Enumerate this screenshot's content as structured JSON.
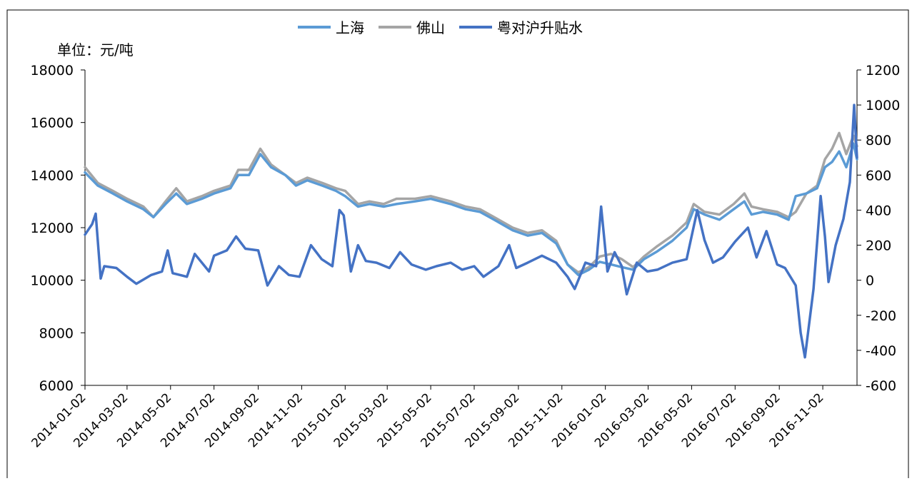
{
  "chart_data": {
    "type": "line",
    "unit_label": "单位：元/吨",
    "legend": [
      "上海",
      "佛山",
      "粤对沪升贴水"
    ],
    "x_ticks": [
      "2014-01-02",
      "2014-03-02",
      "2014-05-02",
      "2014-07-02",
      "2014-09-02",
      "2014-11-02",
      "2015-01-02",
      "2015-03-02",
      "2015-05-02",
      "2015-07-02",
      "2015-09-02",
      "2015-11-02",
      "2016-01-02",
      "2016-03-02",
      "2016-05-02",
      "2016-07-02",
      "2016-09-02",
      "2016-11-02"
    ],
    "x_range": [
      "2014-01-02",
      "2016-12-20"
    ],
    "y_left": {
      "min": 6000,
      "max": 18000,
      "ticks": [
        "6000",
        "8000",
        "10000",
        "12000",
        "14000",
        "16000",
        "18000"
      ]
    },
    "y_right": {
      "min": -600,
      "max": 1200,
      "ticks": [
        "-600",
        "-400",
        "-200",
        "0",
        "200",
        "400",
        "600",
        "800",
        "1000",
        "1200"
      ]
    },
    "grid": false,
    "legend_position": "top-center",
    "colors": {
      "shanghai": "#5b9bd5",
      "foshan": "#a5a5a5",
      "spread": "#4472c4"
    },
    "series": [
      {
        "name": "上海",
        "axis": "left",
        "points": [
          [
            "2014-01-02",
            14100
          ],
          [
            "2014-01-20",
            13600
          ],
          [
            "2014-02-10",
            13300
          ],
          [
            "2014-03-02",
            13000
          ],
          [
            "2014-03-25",
            12700
          ],
          [
            "2014-04-08",
            12400
          ],
          [
            "2014-04-25",
            12900
          ],
          [
            "2014-05-10",
            13300
          ],
          [
            "2014-05-25",
            12900
          ],
          [
            "2014-06-15",
            13100
          ],
          [
            "2014-07-02",
            13300
          ],
          [
            "2014-07-25",
            13500
          ],
          [
            "2014-08-05",
            14000
          ],
          [
            "2014-08-20",
            14000
          ],
          [
            "2014-09-05",
            14800
          ],
          [
            "2014-09-20",
            14300
          ],
          [
            "2014-10-10",
            14000
          ],
          [
            "2014-10-25",
            13600
          ],
          [
            "2014-11-10",
            13800
          ],
          [
            "2014-12-01",
            13600
          ],
          [
            "2014-12-20",
            13400
          ],
          [
            "2015-01-02",
            13200
          ],
          [
            "2015-01-20",
            12800
          ],
          [
            "2015-02-05",
            12900
          ],
          [
            "2015-02-25",
            12800
          ],
          [
            "2015-03-15",
            12900
          ],
          [
            "2015-04-10",
            13000
          ],
          [
            "2015-05-02",
            13100
          ],
          [
            "2015-05-30",
            12900
          ],
          [
            "2015-06-20",
            12700
          ],
          [
            "2015-07-10",
            12600
          ],
          [
            "2015-07-30",
            12300
          ],
          [
            "2015-08-25",
            11900
          ],
          [
            "2015-09-15",
            11700
          ],
          [
            "2015-10-05",
            11800
          ],
          [
            "2015-10-25",
            11400
          ],
          [
            "2015-11-10",
            10600
          ],
          [
            "2015-11-25",
            10200
          ],
          [
            "2015-12-10",
            10400
          ],
          [
            "2015-12-25",
            10700
          ],
          [
            "2016-01-10",
            10600
          ],
          [
            "2016-01-25",
            10500
          ],
          [
            "2016-02-10",
            10400
          ],
          [
            "2016-02-25",
            10800
          ],
          [
            "2016-03-15",
            11100
          ],
          [
            "2016-04-05",
            11500
          ],
          [
            "2016-04-25",
            12000
          ],
          [
            "2016-05-05",
            12700
          ],
          [
            "2016-05-20",
            12500
          ],
          [
            "2016-06-10",
            12300
          ],
          [
            "2016-06-30",
            12700
          ],
          [
            "2016-07-15",
            13000
          ],
          [
            "2016-07-25",
            12500
          ],
          [
            "2016-08-10",
            12600
          ],
          [
            "2016-08-30",
            12500
          ],
          [
            "2016-09-15",
            12300
          ],
          [
            "2016-09-25",
            13200
          ],
          [
            "2016-10-10",
            13300
          ],
          [
            "2016-10-25",
            13500
          ],
          [
            "2016-11-05",
            14300
          ],
          [
            "2016-11-15",
            14500
          ],
          [
            "2016-11-25",
            14900
          ],
          [
            "2016-12-05",
            14300
          ],
          [
            "2016-12-15",
            15200
          ],
          [
            "2016-12-20",
            14600
          ]
        ]
      },
      {
        "name": "佛山",
        "axis": "left",
        "points": [
          [
            "2014-01-02",
            14300
          ],
          [
            "2014-01-20",
            13700
          ],
          [
            "2014-02-10",
            13400
          ],
          [
            "2014-03-02",
            13100
          ],
          [
            "2014-03-25",
            12800
          ],
          [
            "2014-04-08",
            12400
          ],
          [
            "2014-04-25",
            13000
          ],
          [
            "2014-05-10",
            13500
          ],
          [
            "2014-05-25",
            13000
          ],
          [
            "2014-06-15",
            13200
          ],
          [
            "2014-07-02",
            13400
          ],
          [
            "2014-07-25",
            13600
          ],
          [
            "2014-08-05",
            14200
          ],
          [
            "2014-08-20",
            14200
          ],
          [
            "2014-09-05",
            15000
          ],
          [
            "2014-09-20",
            14400
          ],
          [
            "2014-10-10",
            14000
          ],
          [
            "2014-10-25",
            13700
          ],
          [
            "2014-11-10",
            13900
          ],
          [
            "2014-12-01",
            13700
          ],
          [
            "2014-12-20",
            13500
          ],
          [
            "2015-01-02",
            13400
          ],
          [
            "2015-01-20",
            12900
          ],
          [
            "2015-02-05",
            13000
          ],
          [
            "2015-02-25",
            12900
          ],
          [
            "2015-03-15",
            13100
          ],
          [
            "2015-04-10",
            13100
          ],
          [
            "2015-05-02",
            13200
          ],
          [
            "2015-05-30",
            13000
          ],
          [
            "2015-06-20",
            12800
          ],
          [
            "2015-07-10",
            12700
          ],
          [
            "2015-07-30",
            12400
          ],
          [
            "2015-08-25",
            12000
          ],
          [
            "2015-09-15",
            11800
          ],
          [
            "2015-10-05",
            11900
          ],
          [
            "2015-10-25",
            11500
          ],
          [
            "2015-11-10",
            10600
          ],
          [
            "2015-11-25",
            10300
          ],
          [
            "2015-12-10",
            10500
          ],
          [
            "2015-12-25",
            10900
          ],
          [
            "2016-01-10",
            11000
          ],
          [
            "2016-01-25",
            10800
          ],
          [
            "2016-02-10",
            10500
          ],
          [
            "2016-02-25",
            10900
          ],
          [
            "2016-03-15",
            11300
          ],
          [
            "2016-04-05",
            11700
          ],
          [
            "2016-04-25",
            12200
          ],
          [
            "2016-05-05",
            12900
          ],
          [
            "2016-05-20",
            12600
          ],
          [
            "2016-06-10",
            12500
          ],
          [
            "2016-06-30",
            12900
          ],
          [
            "2016-07-15",
            13300
          ],
          [
            "2016-07-25",
            12800
          ],
          [
            "2016-08-10",
            12700
          ],
          [
            "2016-08-30",
            12600
          ],
          [
            "2016-09-15",
            12400
          ],
          [
            "2016-09-25",
            12600
          ],
          [
            "2016-10-10",
            13300
          ],
          [
            "2016-10-25",
            13600
          ],
          [
            "2016-11-05",
            14600
          ],
          [
            "2016-11-15",
            15000
          ],
          [
            "2016-11-25",
            15600
          ],
          [
            "2016-12-05",
            14800
          ],
          [
            "2016-12-15",
            15500
          ],
          [
            "2016-12-20",
            15100
          ]
        ]
      },
      {
        "name": "粤对沪升贴水",
        "axis": "right",
        "points": [
          [
            "2014-01-02",
            260
          ],
          [
            "2014-01-12",
            320
          ],
          [
            "2014-01-17",
            380
          ],
          [
            "2014-01-24",
            10
          ],
          [
            "2014-01-29",
            80
          ],
          [
            "2014-02-15",
            70
          ],
          [
            "2014-03-02",
            20
          ],
          [
            "2014-03-15",
            -20
          ],
          [
            "2014-04-05",
            30
          ],
          [
            "2014-04-20",
            50
          ],
          [
            "2014-04-28",
            170
          ],
          [
            "2014-05-05",
            40
          ],
          [
            "2014-05-25",
            20
          ],
          [
            "2014-06-05",
            150
          ],
          [
            "2014-06-25",
            50
          ],
          [
            "2014-07-02",
            140
          ],
          [
            "2014-07-20",
            170
          ],
          [
            "2014-08-02",
            250
          ],
          [
            "2014-08-15",
            180
          ],
          [
            "2014-09-02",
            170
          ],
          [
            "2014-09-15",
            -30
          ],
          [
            "2014-10-01",
            80
          ],
          [
            "2014-10-15",
            30
          ],
          [
            "2014-10-30",
            20
          ],
          [
            "2014-11-15",
            200
          ],
          [
            "2014-11-30",
            120
          ],
          [
            "2014-12-15",
            80
          ],
          [
            "2014-12-25",
            400
          ],
          [
            "2014-12-31",
            370
          ],
          [
            "2015-01-10",
            50
          ],
          [
            "2015-01-20",
            200
          ],
          [
            "2015-01-31",
            110
          ],
          [
            "2015-02-15",
            100
          ],
          [
            "2015-03-05",
            70
          ],
          [
            "2015-03-20",
            160
          ],
          [
            "2015-04-05",
            90
          ],
          [
            "2015-04-25",
            60
          ],
          [
            "2015-05-10",
            80
          ],
          [
            "2015-05-30",
            100
          ],
          [
            "2015-06-15",
            60
          ],
          [
            "2015-07-02",
            80
          ],
          [
            "2015-07-15",
            20
          ],
          [
            "2015-08-05",
            80
          ],
          [
            "2015-08-20",
            200
          ],
          [
            "2015-08-30",
            70
          ],
          [
            "2015-09-15",
            100
          ],
          [
            "2015-10-05",
            140
          ],
          [
            "2015-10-25",
            100
          ],
          [
            "2015-11-10",
            20
          ],
          [
            "2015-11-20",
            -50
          ],
          [
            "2015-12-05",
            100
          ],
          [
            "2015-12-20",
            80
          ],
          [
            "2015-12-27",
            420
          ],
          [
            "2016-01-05",
            50
          ],
          [
            "2016-01-15",
            160
          ],
          [
            "2016-01-25",
            80
          ],
          [
            "2016-02-01",
            -80
          ],
          [
            "2016-02-15",
            100
          ],
          [
            "2016-03-01",
            50
          ],
          [
            "2016-03-15",
            60
          ],
          [
            "2016-04-05",
            100
          ],
          [
            "2016-04-25",
            120
          ],
          [
            "2016-05-10",
            400
          ],
          [
            "2016-05-20",
            230
          ],
          [
            "2016-06-01",
            100
          ],
          [
            "2016-06-15",
            130
          ],
          [
            "2016-07-02",
            220
          ],
          [
            "2016-07-20",
            300
          ],
          [
            "2016-08-01",
            130
          ],
          [
            "2016-08-15",
            280
          ],
          [
            "2016-08-30",
            90
          ],
          [
            "2016-09-10",
            70
          ],
          [
            "2016-09-25",
            -30
          ],
          [
            "2016-10-02",
            -300
          ],
          [
            "2016-10-08",
            -440
          ],
          [
            "2016-10-20",
            -50
          ],
          [
            "2016-10-30",
            480
          ],
          [
            "2016-11-05",
            250
          ],
          [
            "2016-11-10",
            -10
          ],
          [
            "2016-11-20",
            200
          ],
          [
            "2016-12-01",
            350
          ],
          [
            "2016-12-10",
            560
          ],
          [
            "2016-12-16",
            1000
          ],
          [
            "2016-12-20",
            700
          ]
        ]
      }
    ]
  }
}
